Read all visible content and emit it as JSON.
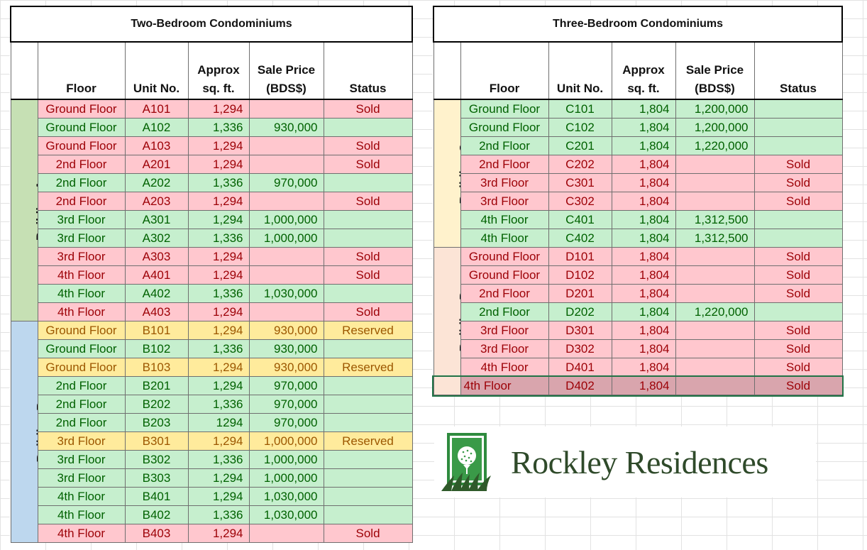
{
  "colors": {
    "sold_bg": "#ffc7ce",
    "sold_text": "#9c0006",
    "available_bg": "#c6efce",
    "available_text": "#006100",
    "reserved_bg": "#ffeb9c",
    "reserved_text": "#9c5700",
    "building_a": "#c6e0b4",
    "building_b": "#bdd7ee",
    "building_c": "#fff2cc",
    "building_d": "#fce4d6",
    "logo_green": "#2f4a2a"
  },
  "headers": {
    "floor": "Floor",
    "unit": "Unit No.",
    "sqft_1": "Approx",
    "sqft_2": "sq. ft.",
    "price_1": "Sale Price",
    "price_2": "(BDS$)",
    "status": "Status"
  },
  "two_bedroom": {
    "title": "Two-Bedroom Condominiums",
    "buildings": [
      {
        "name": "Building A",
        "color": "#c6e0b4",
        "rows": [
          {
            "floor": "Ground Floor",
            "unit": "A101",
            "sqft": "1,294",
            "price": "",
            "status": "Sold",
            "state": "sold"
          },
          {
            "floor": "Ground Floor",
            "unit": "A102",
            "sqft": "1,336",
            "price": "930,000",
            "status": "",
            "state": "avail"
          },
          {
            "floor": "Ground Floor",
            "unit": "A103",
            "sqft": "1,294",
            "price": "",
            "status": "Sold",
            "state": "sold"
          },
          {
            "floor": "2nd Floor",
            "unit": "A201",
            "sqft": "1,294",
            "price": "",
            "status": "Sold",
            "state": "sold"
          },
          {
            "floor": "2nd Floor",
            "unit": "A202",
            "sqft": "1,336",
            "price": "970,000",
            "status": "",
            "state": "avail"
          },
          {
            "floor": "2nd Floor",
            "unit": "A203",
            "sqft": "1,294",
            "price": "",
            "status": "Sold",
            "state": "sold"
          },
          {
            "floor": "3rd Floor",
            "unit": "A301",
            "sqft": "1,294",
            "price": "1,000,000",
            "status": "",
            "state": "avail"
          },
          {
            "floor": "3rd Floor",
            "unit": "A302",
            "sqft": "1,336",
            "price": "1,000,000",
            "status": "",
            "state": "avail"
          },
          {
            "floor": "3rd Floor",
            "unit": "A303",
            "sqft": "1,294",
            "price": "",
            "status": "Sold",
            "state": "sold"
          },
          {
            "floor": "4th Floor",
            "unit": "A401",
            "sqft": "1,294",
            "price": "",
            "status": "Sold",
            "state": "sold"
          },
          {
            "floor": "4th Floor",
            "unit": "A402",
            "sqft": "1,336",
            "price": "1,030,000",
            "status": "",
            "state": "avail"
          },
          {
            "floor": "4th Floor",
            "unit": "A403",
            "sqft": "1,294",
            "price": "",
            "status": "Sold",
            "state": "sold"
          }
        ]
      },
      {
        "name": "Building B",
        "color": "#bdd7ee",
        "rows": [
          {
            "floor": "Ground Floor",
            "unit": "B101",
            "sqft": "1,294",
            "price": "930,000",
            "status": "Reserved",
            "state": "res"
          },
          {
            "floor": "Ground Floor",
            "unit": "B102",
            "sqft": "1,336",
            "price": "930,000",
            "status": "",
            "state": "avail"
          },
          {
            "floor": "Ground Floor",
            "unit": "B103",
            "sqft": "1,294",
            "price": "930,000",
            "status": "Reserved",
            "state": "res"
          },
          {
            "floor": "2nd Floor",
            "unit": "B201",
            "sqft": "1,294",
            "price": "970,000",
            "status": "",
            "state": "avail"
          },
          {
            "floor": "2nd Floor",
            "unit": "B202",
            "sqft": "1,336",
            "price": "970,000",
            "status": "",
            "state": "avail"
          },
          {
            "floor": "2nd Floor",
            "unit": "B203",
            "sqft": "1294",
            "price": "970,000",
            "status": "",
            "state": "avail"
          },
          {
            "floor": "3rd Floor",
            "unit": "B301",
            "sqft": "1,294",
            "price": "1,000,000",
            "status": "Reserved",
            "state": "res"
          },
          {
            "floor": "3rd Floor",
            "unit": "B302",
            "sqft": "1,336",
            "price": "1,000,000",
            "status": "",
            "state": "avail"
          },
          {
            "floor": "3rd Floor",
            "unit": "B303",
            "sqft": "1,294",
            "price": "1,000,000",
            "status": "",
            "state": "avail"
          },
          {
            "floor": "4th Floor",
            "unit": "B401",
            "sqft": "1,294",
            "price": "1,030,000",
            "status": "",
            "state": "avail"
          },
          {
            "floor": "4th Floor",
            "unit": "B402",
            "sqft": "1,336",
            "price": "1,030,000",
            "status": "",
            "state": "avail"
          },
          {
            "floor": "4th Floor",
            "unit": "B403",
            "sqft": "1,294",
            "price": "",
            "status": "Sold",
            "state": "sold"
          }
        ]
      }
    ]
  },
  "three_bedroom": {
    "title": "Three-Bedroom Condominiums",
    "buildings": [
      {
        "name": "Building C",
        "color": "#fff2cc",
        "rows": [
          {
            "floor": "Ground Floor",
            "unit": "C101",
            "sqft": "1,804",
            "price": "1,200,000",
            "status": "",
            "state": "avail"
          },
          {
            "floor": "Ground Floor",
            "unit": "C102",
            "sqft": "1,804",
            "price": "1,200,000",
            "status": "",
            "state": "avail"
          },
          {
            "floor": "2nd Floor",
            "unit": "C201",
            "sqft": "1,804",
            "price": "1,220,000",
            "status": "",
            "state": "avail"
          },
          {
            "floor": "2nd Floor",
            "unit": "C202",
            "sqft": "1,804",
            "price": "",
            "status": "Sold",
            "state": "sold"
          },
          {
            "floor": "3rd Floor",
            "unit": "C301",
            "sqft": "1,804",
            "price": "",
            "status": "Sold",
            "state": "sold"
          },
          {
            "floor": "3rd Floor",
            "unit": "C302",
            "sqft": "1,804",
            "price": "",
            "status": "Sold",
            "state": "sold"
          },
          {
            "floor": "4th Floor",
            "unit": "C401",
            "sqft": "1,804",
            "price": "1,312,500",
            "status": "",
            "state": "avail"
          },
          {
            "floor": "4th Floor",
            "unit": "C402",
            "sqft": "1,804",
            "price": "1,312,500",
            "status": "",
            "state": "avail"
          }
        ]
      },
      {
        "name": "Building D",
        "color": "#fce4d6",
        "rows": [
          {
            "floor": "Ground Floor",
            "unit": "D101",
            "sqft": "1,804",
            "price": "",
            "status": "Sold",
            "state": "sold"
          },
          {
            "floor": "Ground Floor",
            "unit": "D102",
            "sqft": "1,804",
            "price": "",
            "status": "Sold",
            "state": "sold"
          },
          {
            "floor": "2nd Floor",
            "unit": "D201",
            "sqft": "1,804",
            "price": "",
            "status": "Sold",
            "state": "sold"
          },
          {
            "floor": "2nd Floor",
            "unit": "D202",
            "sqft": "1,804",
            "price": "1,220,000",
            "status": "",
            "state": "avail"
          },
          {
            "floor": "3rd Floor",
            "unit": "D301",
            "sqft": "1,804",
            "price": "",
            "status": "Sold",
            "state": "sold"
          },
          {
            "floor": "3rd Floor",
            "unit": "D302",
            "sqft": "1,804",
            "price": "",
            "status": "Sold",
            "state": "sold"
          },
          {
            "floor": "4th Floor",
            "unit": "D401",
            "sqft": "1,804",
            "price": "",
            "status": "Sold",
            "state": "sold"
          },
          {
            "floor": "4th Floor",
            "unit": "D402",
            "sqft": "1,804",
            "price": "",
            "status": "Sold",
            "state": "selected"
          }
        ]
      }
    ]
  },
  "logo": {
    "name": "Rockley Residences",
    "icon": "golf-ball-on-tee-icon"
  }
}
